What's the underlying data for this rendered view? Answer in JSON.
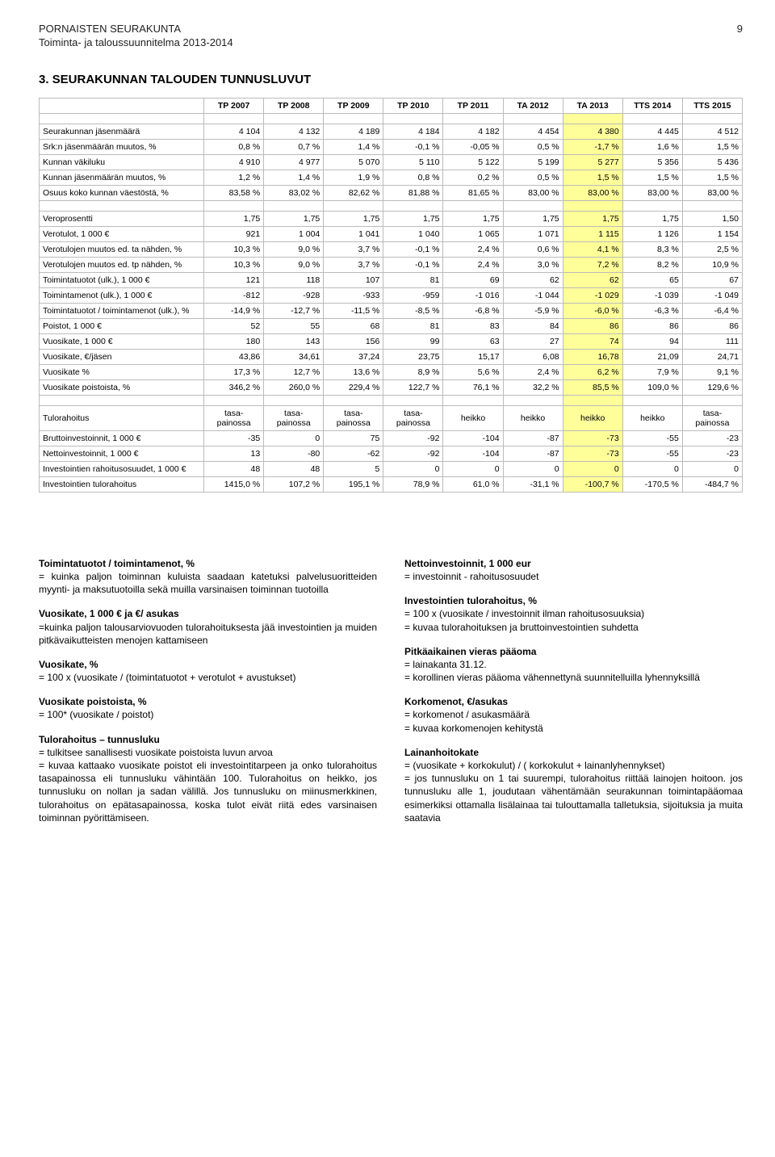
{
  "header": {
    "org": "PORNAISTEN SEURAKUNTA",
    "sub": "Toiminta- ja taloussuunnitelma 2013-2014",
    "page": "9"
  },
  "section_title": "3.  SEURAKUNNAN TALOUDEN TUNNUSLUVUT",
  "table": {
    "highlight_col_index": 7,
    "highlight_color": "#ffff99",
    "columns": [
      "",
      "TP 2007",
      "TP 2008",
      "TP 2009",
      "TP 2010",
      "TP 2011",
      "TA 2012",
      "TA 2013",
      "TTS 2014",
      "TTS 2015"
    ],
    "groups": [
      [
        {
          "label": "Seurakunnan jäsenmäärä",
          "vals": [
            "4 104",
            "4 132",
            "4 189",
            "4 184",
            "4 182",
            "4 454",
            "4 380",
            "4 445",
            "4 512"
          ]
        },
        {
          "label": "Srk:n jäsenmäärän muutos, %",
          "vals": [
            "0,8 %",
            "0,7 %",
            "1,4 %",
            "-0,1 %",
            "-0,05 %",
            "0,5 %",
            "-1,7 %",
            "1,6 %",
            "1,5 %"
          ]
        },
        {
          "label": "Kunnan väkiluku",
          "vals": [
            "4 910",
            "4 977",
            "5 070",
            "5 110",
            "5 122",
            "5 199",
            "5 277",
            "5 356",
            "5 436"
          ]
        },
        {
          "label": "Kunnan jäsenmäärän muutos, %",
          "vals": [
            "1,2 %",
            "1,4 %",
            "1,9 %",
            "0,8 %",
            "0,2 %",
            "0,5 %",
            "1,5 %",
            "1,5 %",
            "1,5 %"
          ]
        },
        {
          "label": "Osuus koko kunnan väestöstä, %",
          "vals": [
            "83,58 %",
            "83,02 %",
            "82,62 %",
            "81,88 %",
            "81,65 %",
            "83,00 %",
            "83,00 %",
            "83,00 %",
            "83,00 %"
          ]
        }
      ],
      [
        {
          "label": "Veroprosentti",
          "vals": [
            "1,75",
            "1,75",
            "1,75",
            "1,75",
            "1,75",
            "1,75",
            "1,75",
            "1,75",
            "1,50"
          ]
        },
        {
          "label": "Verotulot, 1 000 €",
          "vals": [
            "921",
            "1 004",
            "1 041",
            "1 040",
            "1 065",
            "1 071",
            "1 115",
            "1 126",
            "1 154"
          ]
        },
        {
          "label": "Verotulojen muutos ed. ta nähden, %",
          "vals": [
            "10,3 %",
            "9,0 %",
            "3,7 %",
            "-0,1 %",
            "2,4 %",
            "0,6 %",
            "4,1 %",
            "8,3 %",
            "2,5 %"
          ]
        },
        {
          "label": "Verotulojen muutos ed. tp nähden, %",
          "vals": [
            "10,3 %",
            "9,0 %",
            "3,7 %",
            "-0,1 %",
            "2,4 %",
            "3,0 %",
            "7,2 %",
            "8,2 %",
            "10,9 %"
          ]
        },
        {
          "label": "Toimintatuotot (ulk.), 1 000 €",
          "vals": [
            "121",
            "118",
            "107",
            "81",
            "69",
            "62",
            "62",
            "65",
            "67"
          ]
        },
        {
          "label": "Toimintamenot (ulk.), 1 000 €",
          "vals": [
            "-812",
            "-928",
            "-933",
            "-959",
            "-1 016",
            "-1 044",
            "-1 029",
            "-1 039",
            "-1 049"
          ]
        },
        {
          "label": "Toimintatuotot / toimintamenot (ulk.), %",
          "vals": [
            "-14,9 %",
            "-12,7 %",
            "-11,5 %",
            "-8,5 %",
            "-6,8 %",
            "-5,9 %",
            "-6,0 %",
            "-6,3 %",
            "-6,4 %"
          ]
        },
        {
          "label": "Poistot, 1 000 €",
          "vals": [
            "52",
            "55",
            "68",
            "81",
            "83",
            "84",
            "86",
            "86",
            "86"
          ]
        },
        {
          "label": "Vuosikate, 1 000 €",
          "vals": [
            "180",
            "143",
            "156",
            "99",
            "63",
            "27",
            "74",
            "94",
            "111"
          ]
        },
        {
          "label": "Vuosikate, €/jäsen",
          "vals": [
            "43,86",
            "34,61",
            "37,24",
            "23,75",
            "15,17",
            "6,08",
            "16,78",
            "21,09",
            "24,71"
          ]
        },
        {
          "label": "Vuosikate %",
          "vals": [
            "17,3 %",
            "12,7 %",
            "13,6 %",
            "8,9 %",
            "5,6 %",
            "2,4 %",
            "6,2 %",
            "7,9 %",
            "9,1 %"
          ]
        },
        {
          "label": "Vuosikate poistoista, %",
          "vals": [
            "346,2 %",
            "260,0 %",
            "229,4 %",
            "122,7 %",
            "76,1 %",
            "32,2 %",
            "85,5 %",
            "109,0 %",
            "129,6 %"
          ]
        }
      ],
      [
        {
          "label": "Tulorahoitus",
          "vals": [
            "tasa-painossa",
            "tasa-painossa",
            "tasa-painossa",
            "tasa-painossa",
            "heikko",
            "heikko",
            "heikko",
            "heikko",
            "tasa-painossa"
          ],
          "wrap": true
        },
        {
          "label": "Bruttoinvestoinnit, 1 000 €",
          "vals": [
            "-35",
            "0",
            "75",
            "-92",
            "-104",
            "-87",
            "-73",
            "-55",
            "-23"
          ]
        },
        {
          "label": "Nettoinvestoinnit, 1 000 €",
          "vals": [
            "13",
            "-80",
            "-62",
            "-92",
            "-104",
            "-87",
            "-73",
            "-55",
            "-23"
          ]
        },
        {
          "label": "Investointien rahoitusosuudet, 1 000 €",
          "vals": [
            "48",
            "48",
            "5",
            "0",
            "0",
            "0",
            "0",
            "0",
            "0"
          ]
        },
        {
          "label": "Investointien tulorahoitus",
          "vals": [
            "1415,0 %",
            "107,2 %",
            "195,1 %",
            "78,9 %",
            "61,0 %",
            "-31,1 %",
            "-100,7 %",
            "-170,5 %",
            "-484,7 %"
          ]
        }
      ]
    ]
  },
  "defs": {
    "left": [
      {
        "title": "Toimintatuotot / toimintamenot, %",
        "body": "= kuinka paljon toiminnan kuluista saadaan katetuksi palvelusuoritteiden myynti- ja maksutuotoilla sekä muilla varsinaisen toiminnan tuotoilla"
      },
      {
        "title": "Vuosikate, 1 000 € ja €/ asukas",
        "body": "=kuinka paljon talousarviovuoden tulorahoituksesta jää investointien ja muiden pitkävaikutteisten menojen kattamiseen"
      },
      {
        "title": "Vuosikate, %",
        "body": "= 100 x (vuosikate / (toimintatuotot + verotulot + avustukset)"
      },
      {
        "title": "Vuosikate poistoista, %",
        "body": "= 100* (vuosikate / poistot)"
      },
      {
        "title": "Tulorahoitus – tunnusluku",
        "body": "= tulkitsee sanallisesti vuosikate poistoista luvun arvoa\n= kuvaa kattaako vuosikate poistot eli investointitarpeen ja onko tulorahoitus tasapainossa eli tunnusluku vähintään 100. Tulorahoitus on heikko, jos tunnusluku on nollan ja sadan välillä. Jos tunnusluku on miinusmerkkinen, tulorahoitus on epätasapainossa, koska tulot eivät riitä edes varsinaisen toiminnan pyörittämiseen."
      }
    ],
    "right": [
      {
        "title": "Nettoinvestoinnit, 1 000 eur",
        "body": "= investoinnit - rahoitusosuudet"
      },
      {
        "title": "Investointien tulorahoitus, %",
        "body": "= 100 x (vuosikate / investoinnit ilman rahoitusosuuksia)\n= kuvaa tulorahoituksen ja bruttoinvestointien suhdetta"
      },
      {
        "title": "Pitkäaikainen vieras pääoma",
        "body": "= lainakanta 31.12.\n= korollinen vieras pääoma vähennettynä suunnitelluilla lyhennyksillä"
      },
      {
        "title": "Korkomenot, €/asukas",
        "body": "= korkomenot / asukasmäärä\n= kuvaa korkomenojen kehitystä"
      },
      {
        "title": "Lainanhoitokate",
        "body": "= (vuosikate + korkokulut) / ( korkokulut + lainanlyhennykset)\n= jos tunnusluku on 1 tai suurempi, tulorahoitus riittää lainojen hoitoon. jos tunnusluku alle 1, joudutaan vähentämään seurakunnan toimintapääomaa esimerkiksi ottamalla lisälainaa tai tulouttamalla talletuksia, sijoituksia ja muita saatavia"
      }
    ]
  }
}
